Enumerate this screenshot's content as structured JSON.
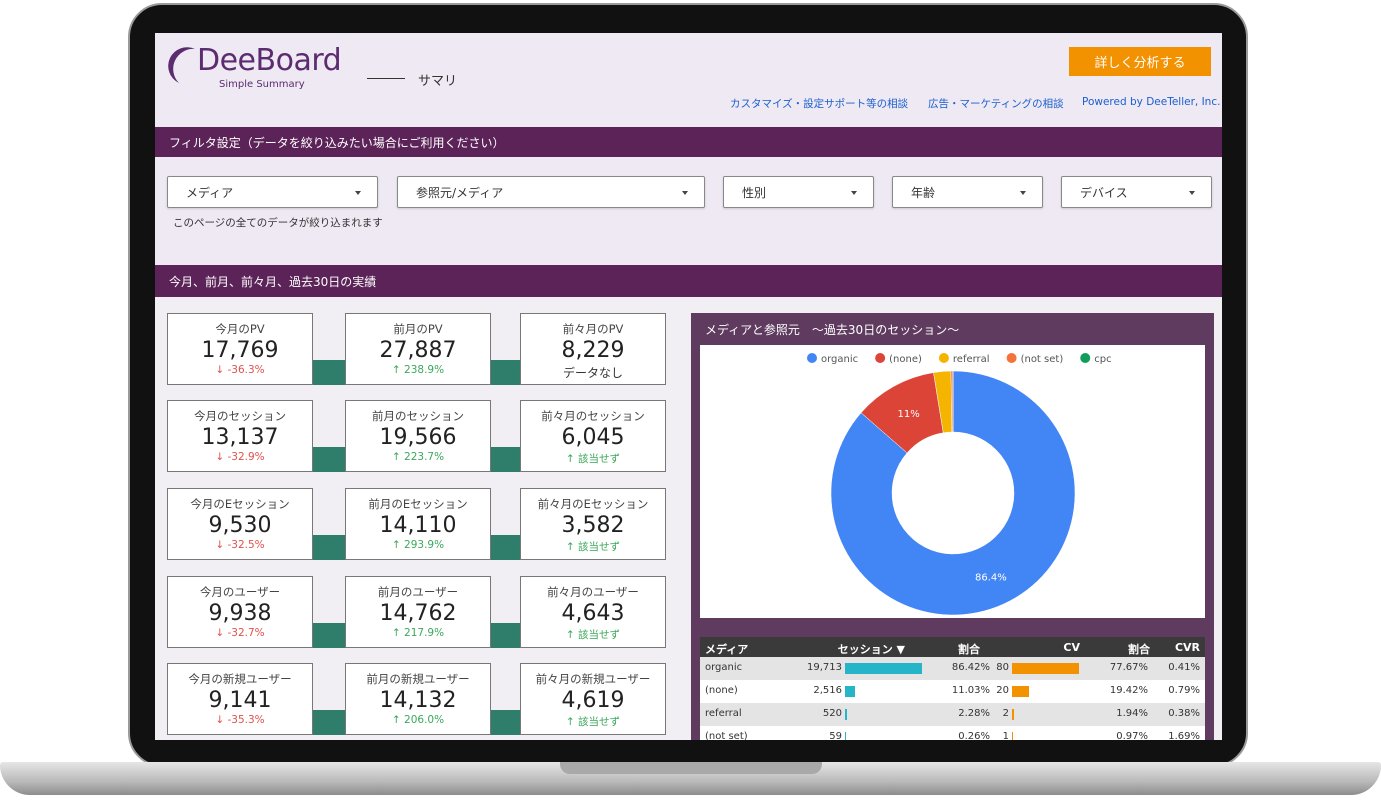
{
  "header": {
    "logo": "DeeBoard",
    "logo_sub": "Simple Summary",
    "page": "サマリ",
    "button": "詳しく分析する",
    "links": [
      "カスタマイズ・設定サポート等の相談",
      "広告・マーケティングの相談",
      "Powered by DeeTeller, Inc."
    ]
  },
  "filters": {
    "title": "フィルタ設定（データを絞り込みたい場合にご利用ください）",
    "dropdowns": [
      "メディア",
      "参照元/メディア",
      "性別",
      "年齢",
      "デバイス"
    ],
    "note": "このページの全てのデータが絞り込まれます"
  },
  "kpi_section": {
    "title": "今月、前月、前々月、過去30日の実績",
    "cards": [
      [
        {
          "title": "今月のPV",
          "value": "17,769",
          "change": "↓ -36.3%"
        },
        {
          "title": "前月のPV",
          "value": "27,887",
          "change": "↑ 238.9%"
        },
        {
          "title": "前々月のPV",
          "value": "8,229",
          "change": "データなし"
        }
      ],
      [
        {
          "title": "今月のセッション",
          "value": "13,137",
          "change": "↓ -32.9%"
        },
        {
          "title": "前月のセッション",
          "value": "19,566",
          "change": "↑ 223.7%"
        },
        {
          "title": "前々月のセッション",
          "value": "6,045",
          "change": "↑ 該当せず"
        }
      ],
      [
        {
          "title": "今月のEセッション",
          "value": "9,530",
          "change": "↓ -32.5%"
        },
        {
          "title": "前月のEセッション",
          "value": "14,110",
          "change": "↑ 293.9%"
        },
        {
          "title": "前々月のEセッション",
          "value": "3,582",
          "change": "↑ 該当せず"
        }
      ],
      [
        {
          "title": "今月のユーザー",
          "value": "9,938",
          "change": "↓ -32.7%"
        },
        {
          "title": "前月のユーザー",
          "value": "14,762",
          "change": "↑ 217.9%"
        },
        {
          "title": "前々月のユーザー",
          "value": "4,643",
          "change": "↑ 該当せず"
        }
      ],
      [
        {
          "title": "今月の新規ユーザー",
          "value": "9,141",
          "change": "↓ -35.3%"
        },
        {
          "title": "前月の新規ユーザー",
          "value": "14,132",
          "change": "↑ 206.0%"
        },
        {
          "title": "前々月の新規ユーザー",
          "value": "4,619",
          "change": "↑ 該当せず"
        }
      ]
    ]
  },
  "chart_data": {
    "type": "pie",
    "donut": true,
    "legend": "top",
    "title": "メディアと参照元　～過去30日のセッション～",
    "categories": [
      "organic",
      "(none)",
      "referral",
      "(not set)",
      "cpc"
    ],
    "values": [
      86.42,
      11.03,
      2.28,
      0.26,
      0.01
    ],
    "value_labels": [
      "86.4%",
      "11%",
      null,
      null,
      null
    ],
    "colors": [
      "#4285f4",
      "#db4437",
      "#f4b400",
      "#f4733a",
      "#0f9d58"
    ]
  },
  "table": {
    "columns": [
      "メディア",
      "セッション ▼",
      "割合",
      "CV",
      "割合",
      "CVR"
    ],
    "rows": [
      [
        "organic",
        "19,713",
        "86.42%",
        "80",
        "77.67%",
        "0.41%"
      ],
      [
        "(none)",
        "2,516",
        "11.03%",
        "20",
        "19.42%",
        "0.79%"
      ],
      [
        "referral",
        "520",
        "2.28%",
        "2",
        "1.94%",
        "0.38%"
      ],
      [
        "(not set)",
        "59",
        "0.26%",
        "1",
        "0.97%",
        "1.69%"
      ]
    ]
  }
}
